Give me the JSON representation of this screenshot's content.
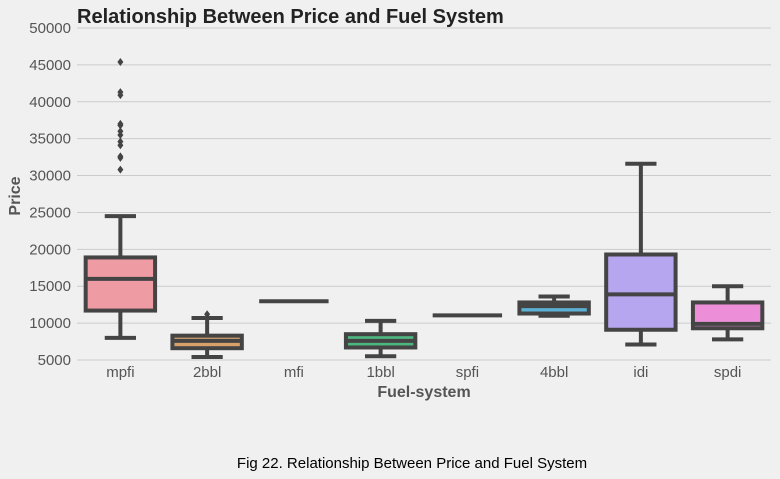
{
  "caption": "Fig 22. Relationship Between Price and Fuel System",
  "chart_data": {
    "type": "box",
    "title": "Relationship Between Price and Fuel System",
    "xlabel": "Fuel-system",
    "ylabel": "Price",
    "ylim": [
      5000,
      50000
    ],
    "yticks": [
      5000,
      10000,
      15000,
      20000,
      25000,
      30000,
      35000,
      40000,
      45000,
      50000
    ],
    "grid": "horizontal",
    "boxes": [
      {
        "category": "mpfi",
        "color": "#ef9ba4",
        "whisker_low": 8000,
        "q1": 11700,
        "median": 16000,
        "q3": 18900,
        "whisker_high": 24500,
        "outliers": [
          30800,
          32400,
          32600,
          34100,
          34600,
          35500,
          36000,
          36800,
          37000,
          40900,
          41300,
          45400
        ]
      },
      {
        "category": "2bbl",
        "color": "#d6a16a",
        "whisker_low": 5400,
        "q1": 6600,
        "median": 7600,
        "q3": 8300,
        "whisker_high": 10700,
        "outliers": [
          11200
        ]
      },
      {
        "category": "mfi",
        "color": "#bdb45e",
        "whisker_low": 12964,
        "q1": 12964,
        "median": 12964,
        "q3": 12964,
        "whisker_high": 12964,
        "outliers": []
      },
      {
        "category": "1bbl",
        "color": "#4db67f",
        "whisker_low": 5500,
        "q1": 6700,
        "median": 7600,
        "q3": 8500,
        "whisker_high": 10300,
        "outliers": []
      },
      {
        "category": "spfi",
        "color": "#58b3ad",
        "whisker_low": 11048,
        "q1": 11048,
        "median": 11048,
        "q3": 11048,
        "whisker_high": 11048,
        "outliers": []
      },
      {
        "category": "4bbl",
        "color": "#5cb0d4",
        "whisker_low": 11000,
        "q1": 11300,
        "median": 12300,
        "q3": 12800,
        "whisker_high": 13600,
        "outliers": []
      },
      {
        "category": "idi",
        "color": "#b6a6ef",
        "whisker_low": 7100,
        "q1": 9100,
        "median": 13900,
        "q3": 19300,
        "whisker_high": 31600,
        "outliers": []
      },
      {
        "category": "spdi",
        "color": "#ec8fd8",
        "whisker_low": 7800,
        "q1": 9300,
        "median": 9900,
        "q3": 12800,
        "whisker_high": 15000,
        "outliers": []
      }
    ]
  }
}
